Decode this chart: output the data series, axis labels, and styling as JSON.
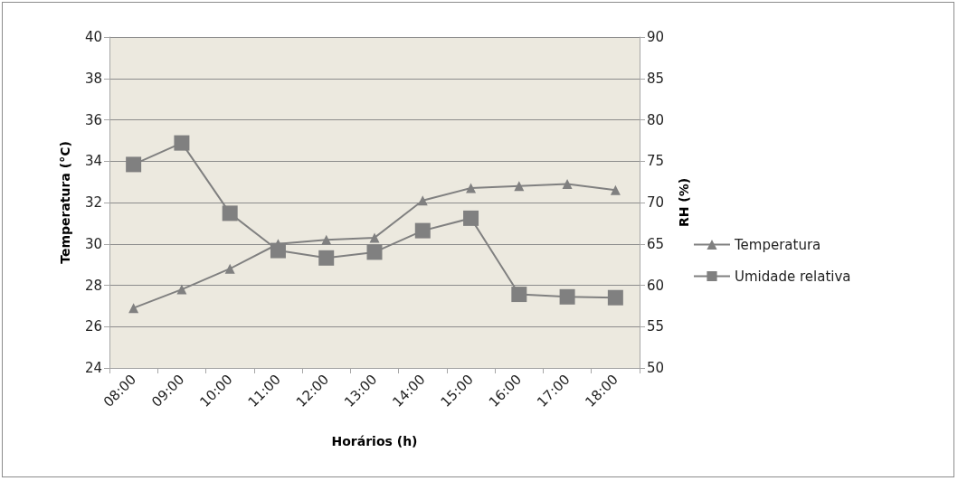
{
  "chart_data": {
    "type": "line",
    "xlabel": "Horários (h)",
    "ylabel": "Temperatura (°C)",
    "y2label": "RH (%)",
    "categories": [
      "08:00",
      "09:00",
      "10:00",
      "11:00",
      "12:00",
      "13:00",
      "14:00",
      "15:00",
      "16:00",
      "17:00",
      "18:00"
    ],
    "series": [
      {
        "name": "Temperatura",
        "color": "#808080",
        "marker": "triangle",
        "values": [
          26.9,
          27.8,
          28.8,
          30.0,
          30.2,
          30.3,
          32.1,
          32.7,
          32.8,
          32.9,
          32.6
        ]
      },
      {
        "name": "Umidade relativa",
        "color": "#808080",
        "marker": "square",
        "axis": "y2",
        "values": [
          74.6,
          77.2,
          68.7,
          64.2,
          63.3,
          64.0,
          66.6,
          68.1,
          58.9,
          58.6,
          58.5
        ]
      }
    ],
    "ylim": [
      24,
      40
    ],
    "yticks": [
      24,
      26,
      28,
      30,
      32,
      34,
      36,
      38,
      40
    ],
    "y2lim": [
      50,
      90
    ],
    "y2ticks": [
      50,
      55,
      60,
      65,
      70,
      75,
      80,
      85,
      90
    ],
    "grid": "y",
    "legend": "right"
  }
}
